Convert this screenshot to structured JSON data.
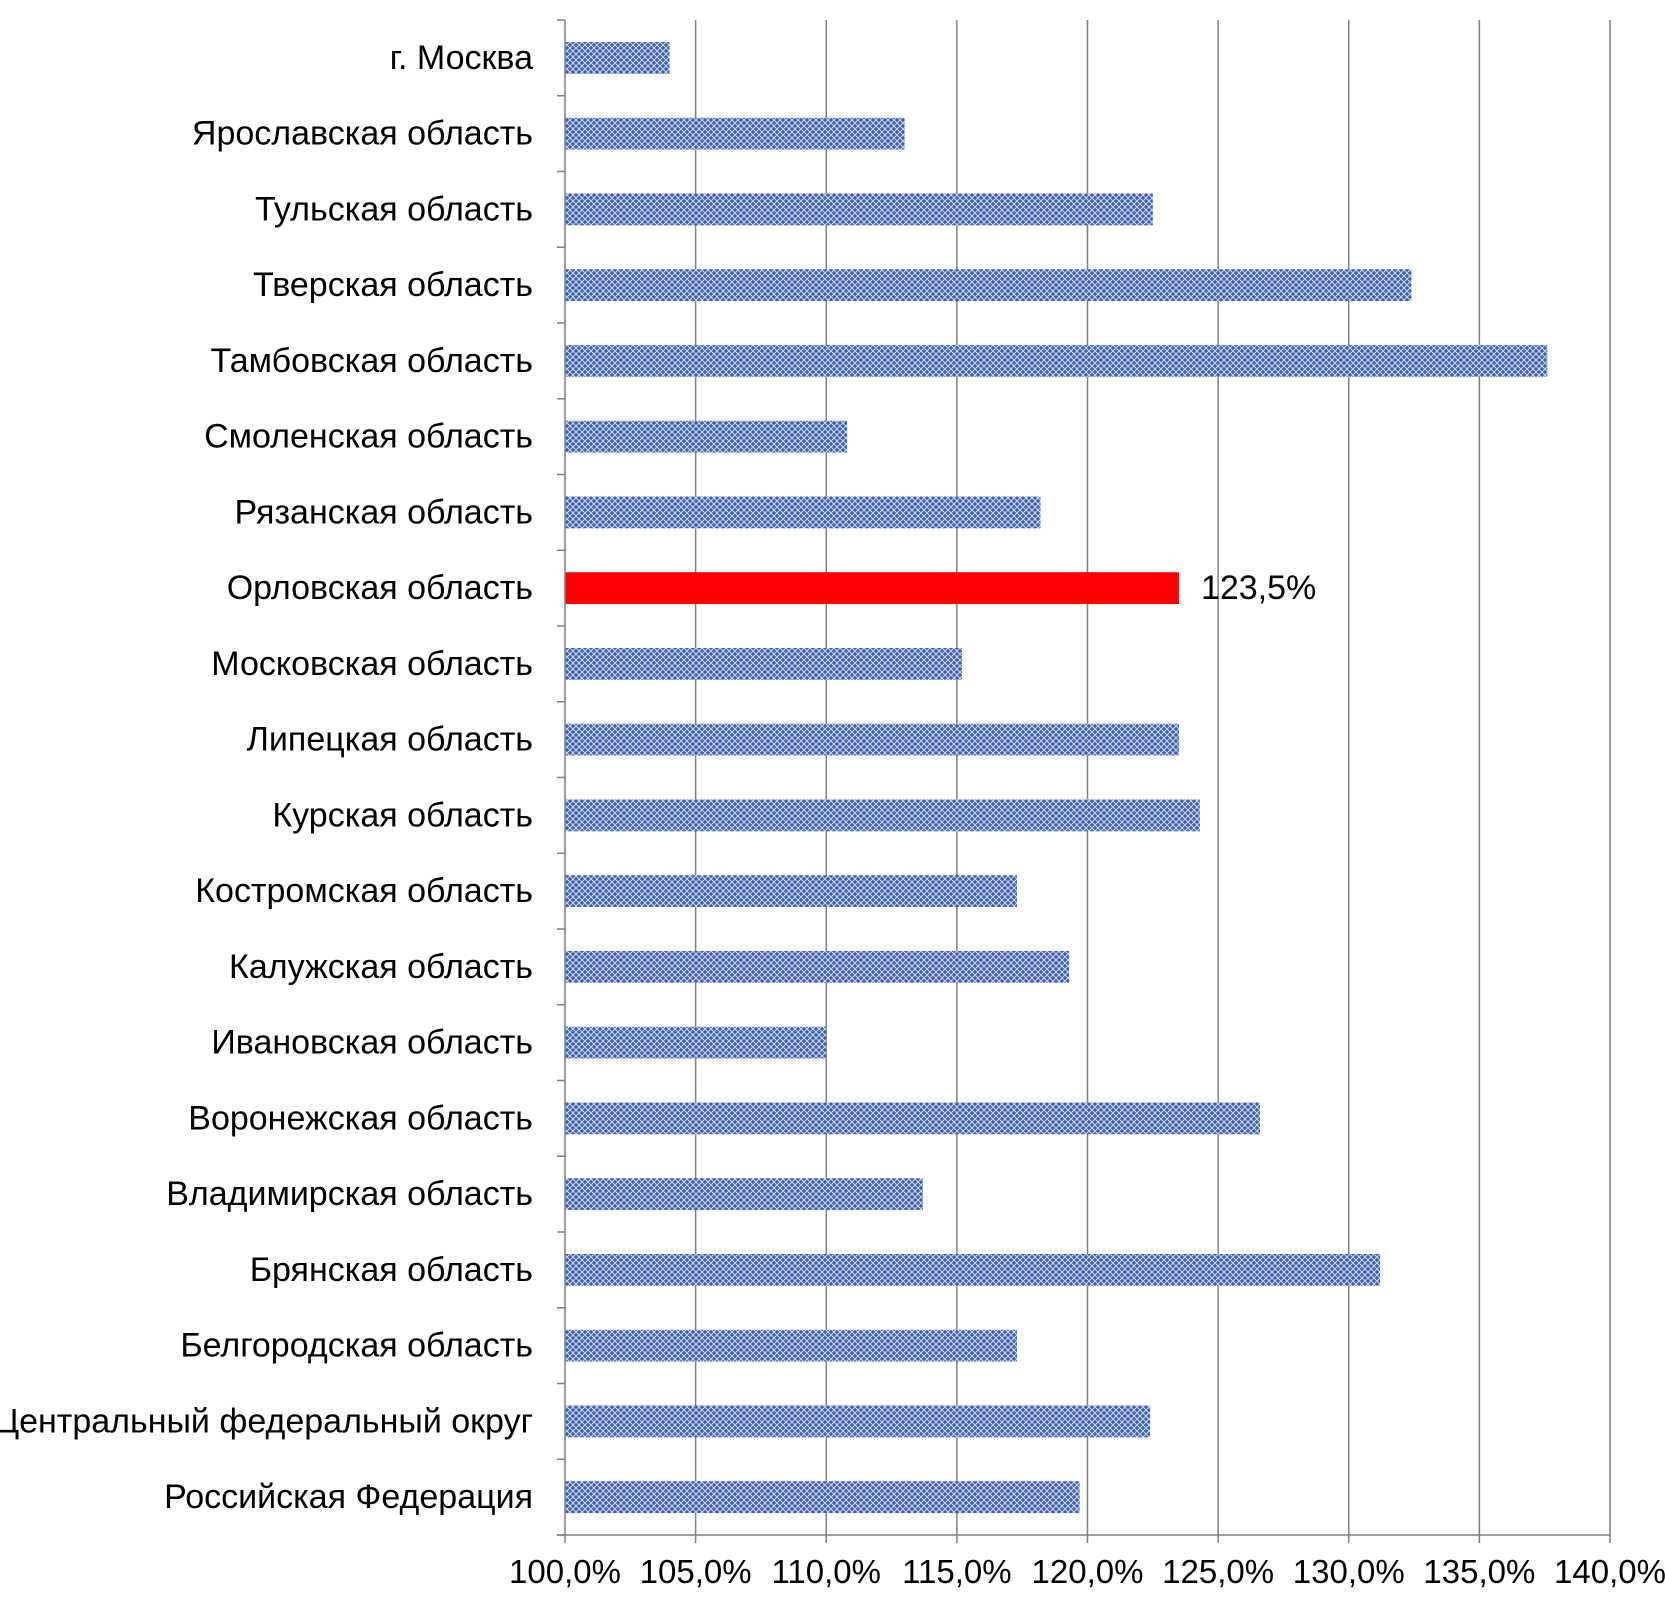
{
  "chart_data": {
    "type": "bar",
    "orientation": "horizontal",
    "title": "",
    "xlabel": "",
    "ylabel": "",
    "xlim": [
      100,
      140
    ],
    "xticks": [
      100,
      105,
      110,
      115,
      120,
      125,
      130,
      135,
      140
    ],
    "xtick_labels": [
      "100,0%",
      "105,0%",
      "110,0%",
      "115,0%",
      "120,0%",
      "125,0%",
      "130,0%",
      "135,0%",
      "140,0%"
    ],
    "grid": "vertical",
    "legend": "none",
    "bar_color": "#4a6bb0",
    "highlight_color": "#ff0000",
    "categories": [
      "г. Москва",
      "Ярославская область",
      "Тульская область",
      "Тверская область",
      "Тамбовская область",
      "Смоленская область",
      "Рязанская область",
      "Орловская область",
      "Московская область",
      "Липецкая область",
      "Курская область",
      "Костромская область",
      "Калужская область",
      "Ивановская область",
      "Воронежская область",
      "Владимирская область",
      "Брянская область",
      "Белгородская область",
      "Центральный федеральный округ",
      "Российская Федерация"
    ],
    "values": [
      104.0,
      113.0,
      122.5,
      132.4,
      137.6,
      110.8,
      118.2,
      123.5,
      115.2,
      123.5,
      124.3,
      117.3,
      119.3,
      110.0,
      126.6,
      113.7,
      131.2,
      117.3,
      122.4,
      119.7
    ],
    "highlight": {
      "category": "Орловская область",
      "label": "123,5%"
    }
  }
}
